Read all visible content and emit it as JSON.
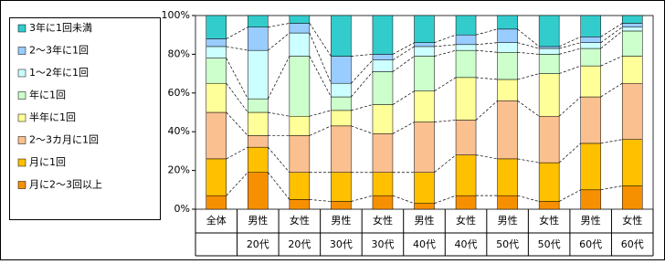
{
  "chart_data": {
    "type": "stacked_bar_100",
    "categories": [
      [
        "全体"
      ],
      [
        "男性",
        "20代"
      ],
      [
        "女性",
        "20代"
      ],
      [
        "男性",
        "30代"
      ],
      [
        "女性",
        "30代"
      ],
      [
        "男性",
        "40代"
      ],
      [
        "女性",
        "40代"
      ],
      [
        "男性",
        "50代"
      ],
      [
        "女性",
        "50代"
      ],
      [
        "男性",
        "60代"
      ],
      [
        "女性",
        "60代"
      ]
    ],
    "series": [
      {
        "name": "月に2～3回以上",
        "color": "#f79000",
        "values": [
          7,
          19,
          5,
          4,
          7,
          3,
          7,
          7,
          4,
          10,
          12
        ]
      },
      {
        "name": "月に1回",
        "color": "#ffc000",
        "values": [
          19,
          13,
          14,
          15,
          12,
          16,
          21,
          19,
          20,
          24,
          24
        ]
      },
      {
        "name": "2～3カ月に1回",
        "color": "#fac090",
        "values": [
          24,
          6,
          19,
          24,
          20,
          26,
          18,
          30,
          24,
          24,
          29
        ]
      },
      {
        "name": "半年に1回",
        "color": "#ffff99",
        "values": [
          15,
          12,
          10,
          8,
          15,
          16,
          22,
          11,
          22,
          16,
          14
        ]
      },
      {
        "name": "年に1回",
        "color": "#ccffcc",
        "values": [
          13,
          7,
          31,
          7,
          17,
          18,
          14,
          14,
          10,
          9,
          13
        ]
      },
      {
        "name": "1～2年に1回",
        "color": "#ccffff",
        "values": [
          6,
          25,
          12,
          7,
          6,
          5,
          3,
          5,
          3,
          3,
          2
        ]
      },
      {
        "name": "2～3年に1回",
        "color": "#99ccff",
        "values": [
          4,
          12,
          5,
          14,
          3,
          2,
          5,
          7,
          1,
          3,
          2
        ]
      },
      {
        "name": "3年に1回未満",
        "color": "#33cccc",
        "values": [
          12,
          6,
          4,
          21,
          20,
          14,
          10,
          7,
          16,
          11,
          4
        ]
      }
    ],
    "ylim": [
      0,
      100
    ],
    "yticks": [
      {
        "value": 0,
        "label": "0%"
      },
      {
        "value": 20,
        "label": "20%"
      },
      {
        "value": 40,
        "label": "40%"
      },
      {
        "value": 60,
        "label": "60%"
      },
      {
        "value": 80,
        "label": "80%"
      },
      {
        "value": 100,
        "label": "100%"
      }
    ]
  }
}
